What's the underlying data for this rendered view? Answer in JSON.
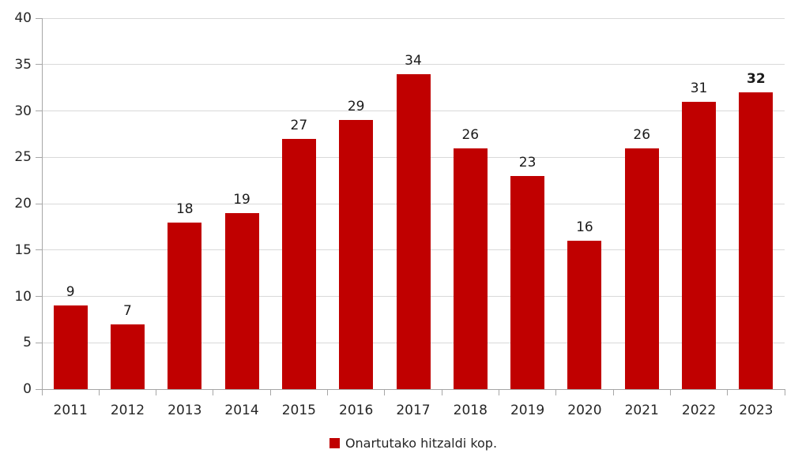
{
  "chart_data": {
    "type": "bar",
    "categories": [
      "2011",
      "2012",
      "2013",
      "2014",
      "2015",
      "2016",
      "2017",
      "2018",
      "2019",
      "2020",
      "2021",
      "2022",
      "2023"
    ],
    "values": [
      9,
      7,
      18,
      19,
      27,
      29,
      34,
      26,
      23,
      16,
      26,
      31,
      32
    ],
    "value_labels": [
      "9",
      "7",
      "18",
      "19",
      "27",
      "29",
      "34",
      "26",
      "23",
      "16",
      "26",
      "31",
      "32"
    ],
    "last_value_bold": true,
    "title": "",
    "xlabel": "",
    "ylabel": "",
    "ylim": [
      0,
      40
    ],
    "ytick_step": 5,
    "ytick_labels": [
      "0",
      "5",
      "10",
      "15",
      "20",
      "25",
      "30",
      "35",
      "40"
    ],
    "grid": "horizontal",
    "legend_position": "bottom-center",
    "series": [
      {
        "name": "Onartutako hitzaldi kop.",
        "color": "#C00000",
        "values": [
          9,
          7,
          18,
          19,
          27,
          29,
          34,
          26,
          23,
          16,
          26,
          31,
          32
        ]
      }
    ]
  },
  "legend": {
    "label": "Onartutako hitzaldi kop.",
    "marker_color": "#C00000"
  }
}
